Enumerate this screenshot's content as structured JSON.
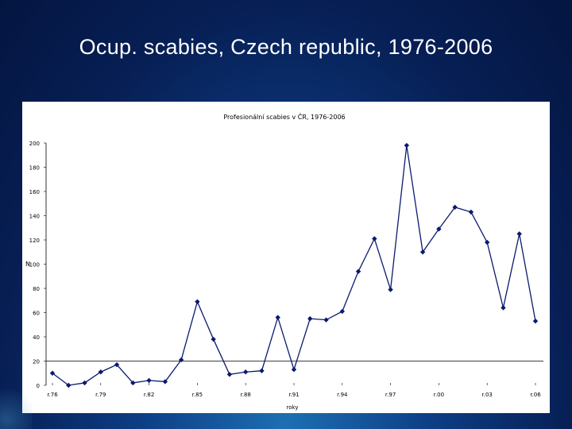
{
  "slide": {
    "title": "Ocup. scabies, Czech republic, 1976-2006"
  },
  "chart_data": {
    "type": "line",
    "title": "Profesionální scabies v ČR, 1976-2006",
    "xlabel": "roky",
    "ylabel": "N",
    "ylim": [
      0,
      200
    ],
    "yticks": [
      0,
      20,
      40,
      60,
      80,
      100,
      120,
      140,
      160,
      180,
      200
    ],
    "x": [
      1976,
      1977,
      1978,
      1979,
      1980,
      1981,
      1982,
      1983,
      1984,
      1985,
      1986,
      1987,
      1988,
      1989,
      1990,
      1991,
      1992,
      1993,
      1994,
      1995,
      1996,
      1997,
      1998,
      1999,
      2000,
      2001,
      2002,
      2003,
      2004,
      2005,
      2006
    ],
    "xtick_labels": [
      {
        "x": 1976,
        "label": "r.76"
      },
      {
        "x": 1979,
        "label": "r.79"
      },
      {
        "x": 1982,
        "label": "r.82"
      },
      {
        "x": 1985,
        "label": "r.85"
      },
      {
        "x": 1988,
        "label": "r.88"
      },
      {
        "x": 1991,
        "label": "r.91"
      },
      {
        "x": 1994,
        "label": "r.94"
      },
      {
        "x": 1997,
        "label": "r.97"
      },
      {
        "x": 2000,
        "label": "r.00"
      },
      {
        "x": 2003,
        "label": "r.03"
      },
      {
        "x": 2006,
        "label": "r.06"
      }
    ],
    "series": [
      {
        "values": [
          10,
          0,
          2,
          11,
          17,
          2,
          4,
          3,
          21,
          69,
          38,
          9,
          11,
          12,
          56,
          13,
          55,
          54,
          61,
          94,
          121,
          79,
          198,
          110,
          129,
          147,
          143,
          118,
          64,
          125,
          53
        ],
        "color": "#0a1a6e"
      }
    ],
    "reference_line": {
      "y": 20,
      "color": "#000000"
    },
    "grid": false,
    "legend": "none"
  }
}
